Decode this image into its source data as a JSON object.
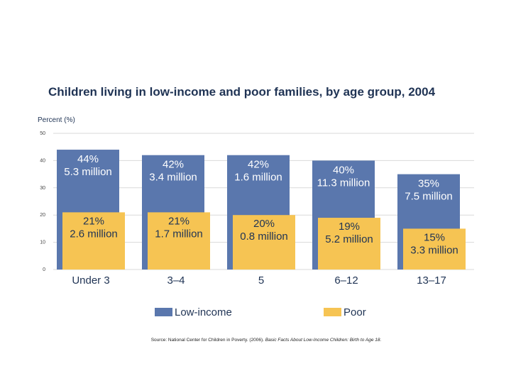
{
  "chart_data": {
    "type": "bar",
    "title": "Children living in low-income and poor families, by age group, 2004",
    "ylabel": "Percent (%)",
    "xlabel": "",
    "ylim": [
      0,
      50
    ],
    "yticks": [
      "0",
      "10",
      "20",
      "30",
      "40",
      "50"
    ],
    "grid": true,
    "legend_position": "bottom",
    "categories": [
      "Under 3",
      "3–4",
      "5",
      "6–12",
      "13–17"
    ],
    "series": [
      {
        "name": "Low-income",
        "color": "#5a77ad",
        "values": [
          44,
          42,
          42,
          40,
          35
        ],
        "pct_labels": [
          "44%",
          "42%",
          "42%",
          "40%",
          "35%"
        ],
        "count_labels": [
          "5.3 million",
          "3.4 million",
          "1.6 million",
          "11.3 million",
          "7.5 million"
        ]
      },
      {
        "name": "Poor",
        "color": "#f6c453",
        "values": [
          21,
          21,
          20,
          19,
          15
        ],
        "pct_labels": [
          "21%",
          "21%",
          "20%",
          "19%",
          "15%"
        ],
        "count_labels": [
          "2.6 million",
          "1.7 million",
          "0.8 million",
          "5.2 million",
          "3.3 million"
        ]
      }
    ],
    "source_prefix": "Source: National Center for Children in Poverty. (2006). ",
    "source_italic": "Basic Facts About Low-Income Children: Birth to Age 18."
  }
}
